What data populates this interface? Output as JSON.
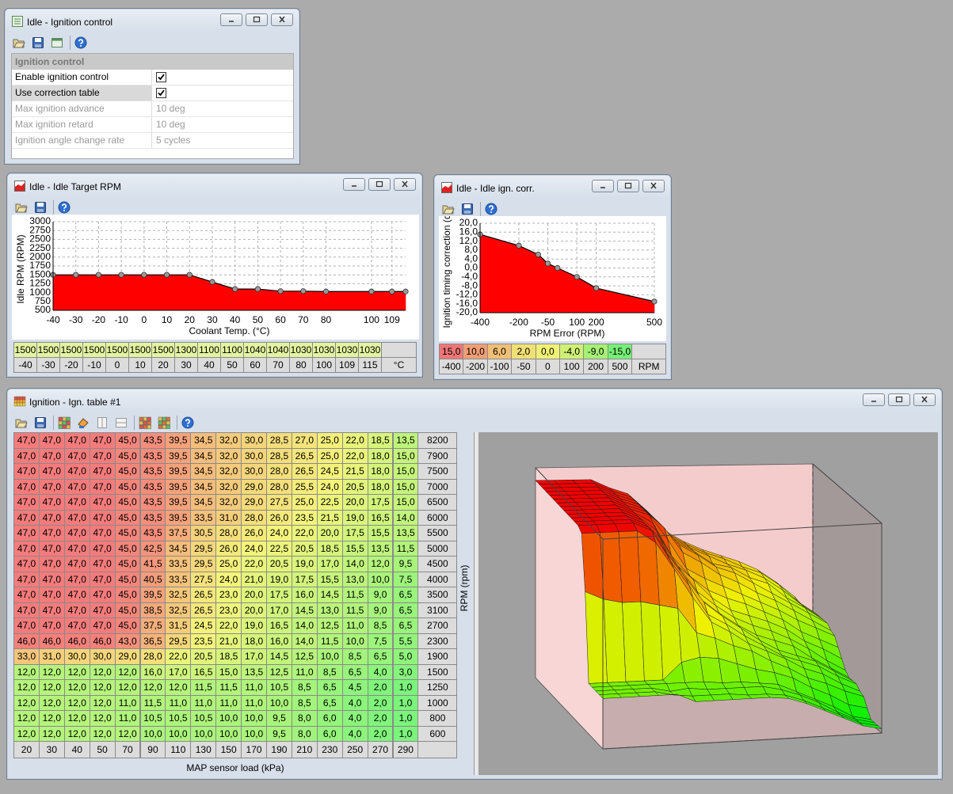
{
  "ignition_control": {
    "title": "Idle - Ignition control",
    "section": "Ignition control",
    "rows": [
      {
        "label": "Enable ignition control",
        "checked": true
      },
      {
        "label": "Use correction table",
        "checked": true
      },
      {
        "label": "Max ignition advance",
        "value": "10 deg"
      },
      {
        "label": "Max ignition retard",
        "value": "10 deg"
      },
      {
        "label": "Ignition angle change rate",
        "value": "5 cycles"
      }
    ]
  },
  "chart_data": [
    {
      "type": "area",
      "title": "Idle - Idle Target RPM",
      "x_label": "Coolant Temp. (°C)",
      "y_label": "Idle RPM (RPM)",
      "x": [
        -40,
        -30,
        -20,
        -10,
        0,
        10,
        20,
        30,
        40,
        50,
        60,
        70,
        80,
        100,
        109,
        115
      ],
      "values": [
        1500,
        1500,
        1500,
        1500,
        1500,
        1500,
        1500,
        1300,
        1100,
        1100,
        1040,
        1040,
        1030,
        1030,
        1030,
        1030
      ],
      "unit": "°C",
      "color": "#ff0000",
      "grid": true,
      "xlim": [
        -40,
        115
      ],
      "xticks": [
        -40,
        -30,
        -20,
        -10,
        0,
        10,
        20,
        30,
        40,
        50,
        60,
        70,
        80,
        100,
        109
      ],
      "ylim": [
        500,
        3000
      ],
      "yticks": [
        500,
        750,
        1000,
        1250,
        1500,
        1750,
        2000,
        2250,
        2500,
        2750,
        3000
      ]
    },
    {
      "type": "area",
      "title": "Idle - Idle ign. corr.",
      "x_label": "RPM Error (RPM)",
      "y_label": "Ignition timing correction (d",
      "x": [
        -400,
        -200,
        -100,
        -50,
        0,
        100,
        200,
        500
      ],
      "values": [
        15,
        10,
        6,
        2,
        0,
        -4,
        -9,
        -15
      ],
      "value_labels": [
        "15,0",
        "10,0",
        "6,0",
        "2,0",
        "0,0",
        "-4,0",
        "-9,0",
        "-15,0"
      ],
      "unit": "RPM",
      "color": "#ff0000",
      "grid": true,
      "xlim": [
        -400,
        500
      ],
      "xticks": [
        -400,
        -200,
        -50,
        100,
        200,
        500
      ],
      "ylim": [
        -20,
        20
      ],
      "yticks": [
        {
          "value": -20,
          "label": "-20,0"
        },
        {
          "value": -16,
          "label": "-16,0"
        },
        {
          "value": -12,
          "label": "-12,0"
        },
        {
          "value": -8,
          "label": "-8,0"
        },
        {
          "value": -4,
          "label": "-4,0"
        },
        {
          "value": 0,
          "label": "0,0"
        },
        {
          "value": 4,
          "label": "4,0"
        },
        {
          "value": 8,
          "label": "8,0"
        },
        {
          "value": 12,
          "label": "12,0"
        },
        {
          "value": 16,
          "label": "16,0"
        },
        {
          "value": 20,
          "label": "20,0"
        }
      ]
    },
    {
      "type": "surface",
      "title": "Ignition - Ign. table #1",
      "x_label": "MAP sensor load (kPa)",
      "y_label": "RPM (rpm)",
      "x": [
        20,
        30,
        40,
        50,
        70,
        90,
        110,
        130,
        150,
        170,
        190,
        210,
        230,
        250,
        270,
        290
      ],
      "y": [
        8200,
        7900,
        7500,
        7000,
        6500,
        6000,
        5500,
        5000,
        4500,
        4000,
        3500,
        3100,
        2700,
        2300,
        1900,
        1500,
        1250,
        1000,
        800,
        600
      ],
      "zlim": [
        0,
        50
      ],
      "values": [
        [
          47,
          47,
          47,
          47,
          45,
          43.5,
          39.5,
          34.5,
          32,
          30,
          28.5,
          27,
          25,
          22,
          18.5,
          13.5
        ],
        [
          47,
          47,
          47,
          47,
          45,
          43.5,
          39.5,
          34.5,
          32,
          30,
          28.5,
          26.5,
          25,
          22,
          18,
          15
        ],
        [
          47,
          47,
          47,
          47,
          45,
          43.5,
          39.5,
          34.5,
          32,
          30,
          28,
          26.5,
          24.5,
          21.5,
          18,
          15
        ],
        [
          47,
          47,
          47,
          47,
          45,
          43.5,
          39.5,
          34.5,
          32,
          29,
          28,
          25.5,
          24,
          20.5,
          18,
          15
        ],
        [
          47,
          47,
          47,
          47,
          45,
          43.5,
          39.5,
          34.5,
          32,
          29,
          27.5,
          25,
          22.5,
          20,
          17.5,
          15
        ],
        [
          47,
          47,
          47,
          47,
          45,
          43.5,
          39.5,
          33.5,
          31,
          28,
          26,
          23.5,
          21.5,
          19,
          16.5,
          14
        ],
        [
          47,
          47,
          47,
          47,
          45,
          43.5,
          37.5,
          30.5,
          28,
          26,
          24,
          22,
          20,
          17.5,
          15.5,
          13.5
        ],
        [
          47,
          47,
          47,
          47,
          45,
          42.5,
          34.5,
          29.5,
          26,
          24,
          22.5,
          20.5,
          18.5,
          15.5,
          13.5,
          11.5
        ],
        [
          47,
          47,
          47,
          47,
          45,
          41.5,
          33.5,
          29.5,
          25,
          22,
          20.5,
          19,
          17,
          14,
          12,
          9.5
        ],
        [
          47,
          47,
          47,
          47,
          45,
          40.5,
          33.5,
          27.5,
          24,
          21,
          19,
          17.5,
          15.5,
          13,
          10,
          7.5
        ],
        [
          47,
          47,
          47,
          47,
          45,
          39.5,
          32.5,
          26.5,
          23,
          20,
          17.5,
          16,
          14.5,
          11.5,
          9,
          6.5
        ],
        [
          47,
          47,
          47,
          47,
          45,
          38.5,
          32.5,
          26.5,
          23,
          20,
          17,
          14.5,
          13,
          11.5,
          9,
          6.5
        ],
        [
          47,
          47,
          47,
          47,
          45,
          37.5,
          31.5,
          24.5,
          22,
          19,
          16.5,
          14,
          12.5,
          11,
          8.5,
          6.5
        ],
        [
          46,
          46,
          46,
          46,
          43,
          36.5,
          29.5,
          23.5,
          21,
          18,
          16,
          14,
          11.5,
          10,
          7.5,
          5.5
        ],
        [
          33,
          31,
          30,
          30,
          29,
          28,
          22,
          20.5,
          18.5,
          17,
          14.5,
          12.5,
          10,
          8.5,
          6.5,
          5
        ],
        [
          12,
          12,
          12,
          12,
          12,
          16,
          17,
          16.5,
          15,
          13.5,
          12.5,
          11,
          8.5,
          6.5,
          4,
          3
        ],
        [
          12,
          12,
          12,
          12,
          12,
          12,
          12,
          11.5,
          11.5,
          11,
          10.5,
          8.5,
          6.5,
          4.5,
          2,
          1
        ],
        [
          12,
          12,
          12,
          12,
          11,
          11.5,
          11,
          11,
          11,
          11,
          10,
          8.5,
          6.5,
          4,
          2,
          1
        ],
        [
          12,
          12,
          12,
          12,
          11,
          10.5,
          10.5,
          10.5,
          10,
          10,
          9.5,
          8,
          6,
          4,
          2,
          1
        ],
        [
          12,
          12,
          12,
          12,
          12,
          10,
          10,
          10,
          10,
          10,
          9.5,
          8,
          6,
          4,
          2,
          1
        ]
      ],
      "value_labels": [
        [
          "47,0",
          "47,0",
          "47,0",
          "47,0",
          "45,0",
          "43,5",
          "39,5",
          "34,5",
          "32,0",
          "30,0",
          "28,5",
          "27,0",
          "25,0",
          "22,0",
          "18,5",
          "13,5"
        ],
        [
          "47,0",
          "47,0",
          "47,0",
          "47,0",
          "45,0",
          "43,5",
          "39,5",
          "34,5",
          "32,0",
          "30,0",
          "28,5",
          "26,5",
          "25,0",
          "22,0",
          "18,0",
          "15,0"
        ],
        [
          "47,0",
          "47,0",
          "47,0",
          "47,0",
          "45,0",
          "43,5",
          "39,5",
          "34,5",
          "32,0",
          "30,0",
          "28,0",
          "26,5",
          "24,5",
          "21,5",
          "18,0",
          "15,0"
        ],
        [
          "47,0",
          "47,0",
          "47,0",
          "47,0",
          "45,0",
          "43,5",
          "39,5",
          "34,5",
          "32,0",
          "29,0",
          "28,0",
          "25,5",
          "24,0",
          "20,5",
          "18,0",
          "15,0"
        ],
        [
          "47,0",
          "47,0",
          "47,0",
          "47,0",
          "45,0",
          "43,5",
          "39,5",
          "34,5",
          "32,0",
          "29,0",
          "27,5",
          "25,0",
          "22,5",
          "20,0",
          "17,5",
          "15,0"
        ],
        [
          "47,0",
          "47,0",
          "47,0",
          "47,0",
          "45,0",
          "43,5",
          "39,5",
          "33,5",
          "31,0",
          "28,0",
          "26,0",
          "23,5",
          "21,5",
          "19,0",
          "16,5",
          "14,0"
        ],
        [
          "47,0",
          "47,0",
          "47,0",
          "47,0",
          "45,0",
          "43,5",
          "37,5",
          "30,5",
          "28,0",
          "26,0",
          "24,0",
          "22,0",
          "20,0",
          "17,5",
          "15,5",
          "13,5"
        ],
        [
          "47,0",
          "47,0",
          "47,0",
          "47,0",
          "45,0",
          "42,5",
          "34,5",
          "29,5",
          "26,0",
          "24,0",
          "22,5",
          "20,5",
          "18,5",
          "15,5",
          "13,5",
          "11,5"
        ],
        [
          "47,0",
          "47,0",
          "47,0",
          "47,0",
          "45,0",
          "41,5",
          "33,5",
          "29,5",
          "25,0",
          "22,0",
          "20,5",
          "19,0",
          "17,0",
          "14,0",
          "12,0",
          "9,5"
        ],
        [
          "47,0",
          "47,0",
          "47,0",
          "47,0",
          "45,0",
          "40,5",
          "33,5",
          "27,5",
          "24,0",
          "21,0",
          "19,0",
          "17,5",
          "15,5",
          "13,0",
          "10,0",
          "7,5"
        ],
        [
          "47,0",
          "47,0",
          "47,0",
          "47,0",
          "45,0",
          "39,5",
          "32,5",
          "26,5",
          "23,0",
          "20,0",
          "17,5",
          "16,0",
          "14,5",
          "11,5",
          "9,0",
          "6,5"
        ],
        [
          "47,0",
          "47,0",
          "47,0",
          "47,0",
          "45,0",
          "38,5",
          "32,5",
          "26,5",
          "23,0",
          "20,0",
          "17,0",
          "14,5",
          "13,0",
          "11,5",
          "9,0",
          "6,5"
        ],
        [
          "47,0",
          "47,0",
          "47,0",
          "47,0",
          "45,0",
          "37,5",
          "31,5",
          "24,5",
          "22,0",
          "19,0",
          "16,5",
          "14,0",
          "12,5",
          "11,0",
          "8,5",
          "6,5"
        ],
        [
          "46,0",
          "46,0",
          "46,0",
          "46,0",
          "43,0",
          "36,5",
          "29,5",
          "23,5",
          "21,0",
          "18,0",
          "16,0",
          "14,0",
          "11,5",
          "10,0",
          "7,5",
          "5,5"
        ],
        [
          "33,0",
          "31,0",
          "30,0",
          "30,0",
          "29,0",
          "28,0",
          "22,0",
          "20,5",
          "18,5",
          "17,0",
          "14,5",
          "12,5",
          "10,0",
          "8,5",
          "6,5",
          "5,0"
        ],
        [
          "12,0",
          "12,0",
          "12,0",
          "12,0",
          "12,0",
          "16,0",
          "17,0",
          "16,5",
          "15,0",
          "13,5",
          "12,5",
          "11,0",
          "8,5",
          "6,5",
          "4,0",
          "3,0"
        ],
        [
          "12,0",
          "12,0",
          "12,0",
          "12,0",
          "12,0",
          "12,0",
          "12,0",
          "11,5",
          "11,5",
          "11,0",
          "10,5",
          "8,5",
          "6,5",
          "4,5",
          "2,0",
          "1,0"
        ],
        [
          "12,0",
          "12,0",
          "12,0",
          "12,0",
          "11,0",
          "11,5",
          "11,0",
          "11,0",
          "11,0",
          "11,0",
          "10,0",
          "8,5",
          "6,5",
          "4,0",
          "2,0",
          "1,0"
        ],
        [
          "12,0",
          "12,0",
          "12,0",
          "12,0",
          "11,0",
          "10,5",
          "10,5",
          "10,5",
          "10,0",
          "10,0",
          "9,5",
          "8,0",
          "6,0",
          "4,0",
          "2,0",
          "1,0"
        ],
        [
          "12,0",
          "12,0",
          "12,0",
          "12,0",
          "12,0",
          "10,0",
          "10,0",
          "10,0",
          "10,0",
          "10,0",
          "9,5",
          "8,0",
          "6,0",
          "4,0",
          "2,0",
          "1,0"
        ]
      ]
    }
  ]
}
